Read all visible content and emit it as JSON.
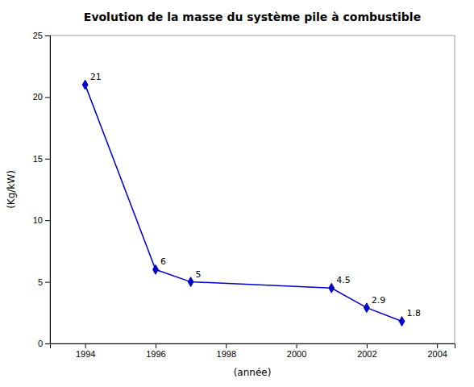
{
  "chart_data": {
    "type": "line",
    "title": "Evolution de la masse du système pile à combustible",
    "xlabel": "(année)",
    "ylabel": "(Kg/kW)",
    "x": [
      1994,
      1996,
      1997,
      2001,
      2002,
      2003
    ],
    "values": [
      21,
      6,
      5,
      4.5,
      2.9,
      1.8
    ],
    "color": "#0000CC",
    "marker": "diamond",
    "data_labels": true,
    "grid": false,
    "xlim": [
      1993,
      2004.5
    ],
    "ylim": [
      0,
      25
    ],
    "xticks": [
      1994,
      1996,
      1998,
      2000,
      2002,
      2004
    ],
    "yticks": [
      0,
      5,
      10,
      15,
      20,
      25
    ]
  }
}
